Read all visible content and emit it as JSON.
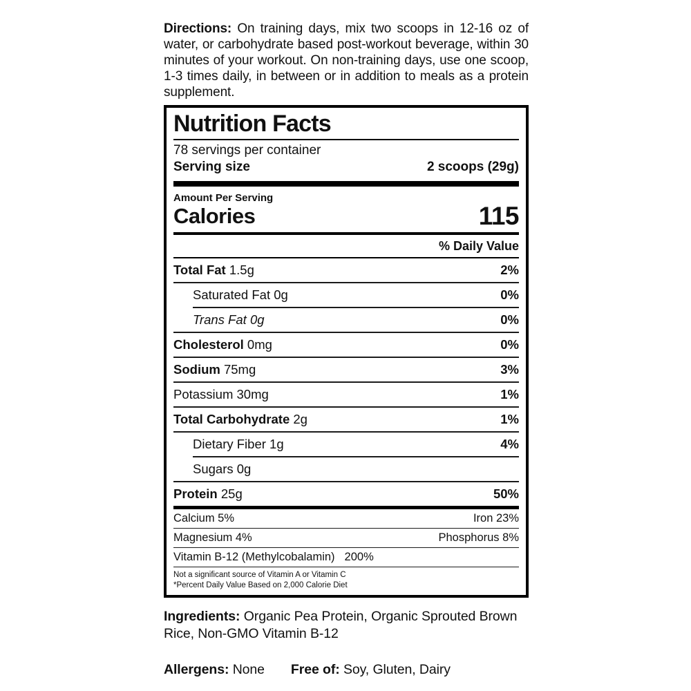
{
  "page": {
    "background_color": "#ffffff",
    "text_color": "#111111"
  },
  "directions": {
    "label": "Directions:",
    "text": "On training days, mix two scoops in 12-16 oz of water, or carbohydrate based post-workout beverage, within 30 minutes of your workout. On non-training days, use one scoop, 1-3 times daily, in between or in addition to meals as a protein supplement."
  },
  "nutrition_facts": {
    "title": "Nutrition Facts",
    "servings_per_container": "78 servings per container",
    "serving_size_label": "Serving size",
    "serving_size_value": "2 scoops (29g)",
    "amount_per_serving": "Amount Per Serving",
    "calories_label": "Calories",
    "calories_value": "115",
    "daily_value_header": "% Daily Value",
    "rows": [
      {
        "name": "Total Fat",
        "amount": "1.5g",
        "dv": "2%"
      },
      {
        "name": "Saturated Fat",
        "amount": "0g",
        "dv": "0%"
      },
      {
        "name": "Trans Fat",
        "amount": "0g",
        "dv": "0%"
      },
      {
        "name": "Cholesterol",
        "amount": "0mg",
        "dv": "0%"
      },
      {
        "name": "Sodium",
        "amount": "75mg",
        "dv": "3%"
      },
      {
        "name": "Potassium",
        "amount": "30mg",
        "dv": "1%"
      },
      {
        "name": "Total Carbohydrate",
        "amount": "2g",
        "dv": "1%"
      },
      {
        "name": "Dietary Fiber",
        "amount": "1g",
        "dv": "4%"
      },
      {
        "name": "Sugars",
        "amount": "0g",
        "dv": ""
      },
      {
        "name": "Protein",
        "amount": "25g",
        "dv": "50%"
      }
    ],
    "micronutrients": [
      {
        "left": "Calcium 5%",
        "right": "Iron 23%"
      },
      {
        "left": "Magnesium 4%",
        "right": "Phosphorus 8%"
      },
      {
        "left": "Vitamin B-12 (Methylcobalamin)",
        "value": "200%",
        "right": ""
      }
    ],
    "footnotes": [
      "Not a significant source of Vitamin A or Vitamin C",
      "*Percent Daily Value Based on 2,000 Calorie Diet"
    ]
  },
  "ingredients": {
    "label": "Ingredients:",
    "text": "Organic Pea Protein, Organic Sprouted Brown Rice, Non-GMO Vitamin B-12"
  },
  "allergens": {
    "label": "Allergens:",
    "value": "None",
    "free_of_label": "Free of:",
    "free_of_value": "Soy, Gluten, Dairy"
  }
}
